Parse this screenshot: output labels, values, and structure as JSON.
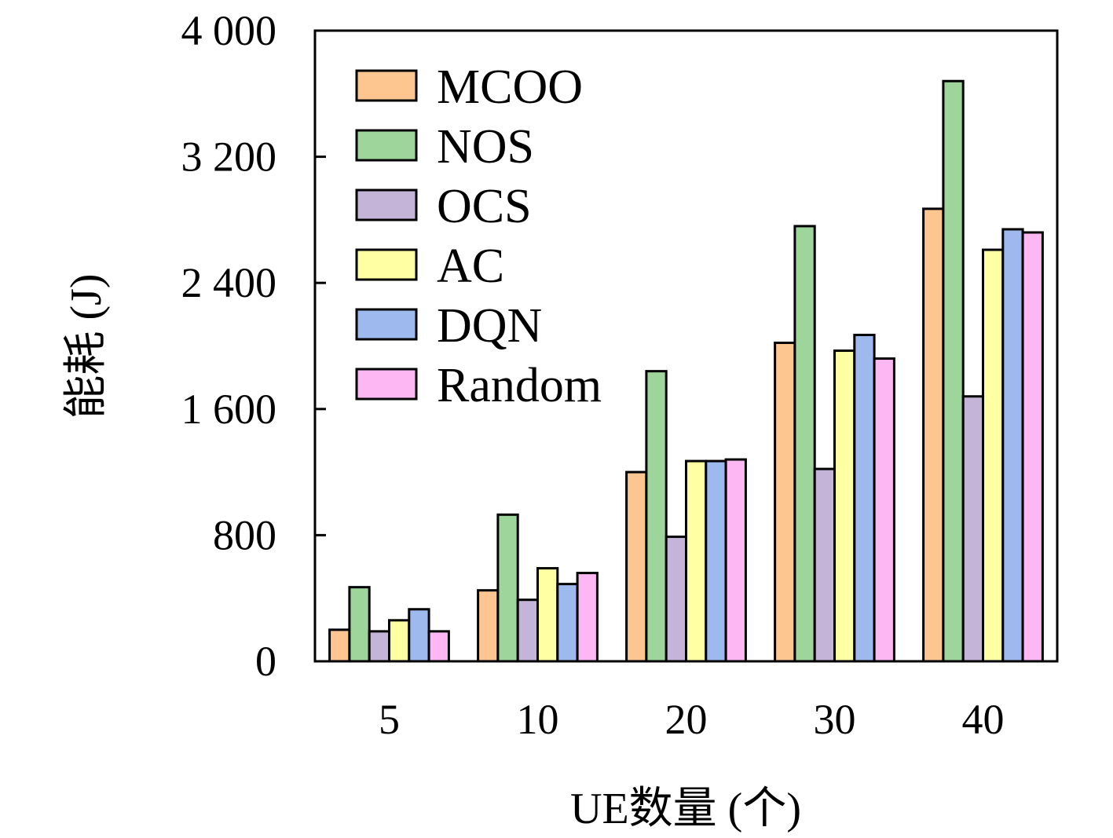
{
  "chart_data": {
    "type": "bar",
    "title": "",
    "xlabel": "UE数量 (个)",
    "ylabel": "能耗 (J)",
    "categories": [
      "5",
      "10",
      "20",
      "30",
      "40"
    ],
    "ylim": [
      0,
      4000
    ],
    "yticks": [
      0,
      800,
      1600,
      2400,
      3200,
      4000
    ],
    "ytick_labels": [
      "0",
      "800",
      "1 600",
      "2 400",
      "3 200",
      "4 000"
    ],
    "grid": false,
    "legend_position": "top-left",
    "series": [
      {
        "name": "MCOO",
        "color": "#FDC590",
        "values": [
          200,
          450,
          1200,
          2020,
          2870
        ]
      },
      {
        "name": "NOS",
        "color": "#9ED59A",
        "values": [
          470,
          930,
          1840,
          2760,
          3680
        ]
      },
      {
        "name": "OCS",
        "color": "#C4B4D8",
        "values": [
          190,
          390,
          790,
          1220,
          1680
        ]
      },
      {
        "name": "AC",
        "color": "#FFFFA4",
        "values": [
          260,
          590,
          1270,
          1970,
          2610
        ]
      },
      {
        "name": "DQN",
        "color": "#9EB9EE",
        "values": [
          330,
          490,
          1270,
          2070,
          2740
        ]
      },
      {
        "name": "Random",
        "color": "#FDB8F4",
        "values": [
          190,
          560,
          1280,
          1920,
          2720
        ]
      }
    ]
  }
}
